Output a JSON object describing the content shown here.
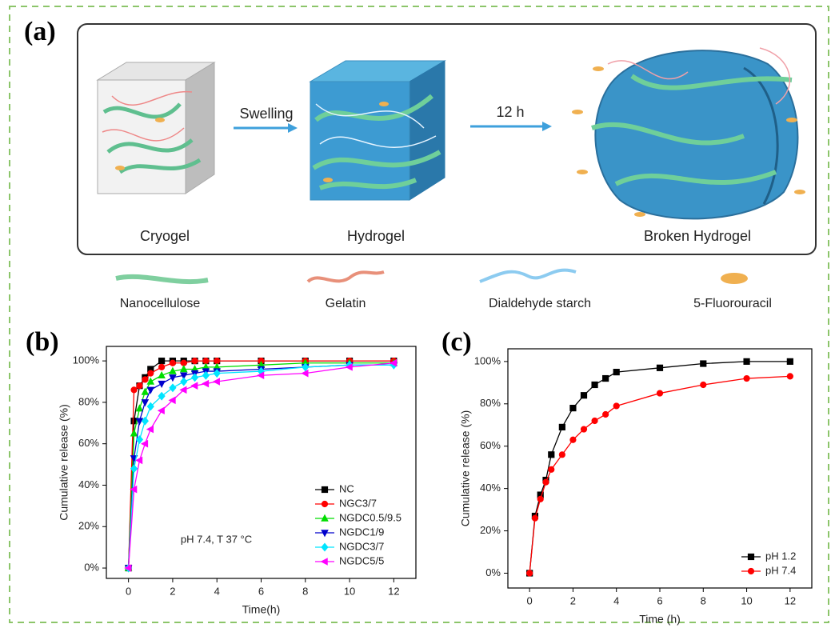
{
  "panels": {
    "a": "(a)",
    "b": "(b)",
    "c": "(c)"
  },
  "diagram": {
    "arrows": [
      "Swelling",
      "12 h"
    ],
    "stages": [
      "Cryogel",
      "Hydrogel",
      "Broken Hydrogel"
    ],
    "legend": [
      "Nanocellulose",
      "Gelatin",
      "Dialdehyde starch",
      "5-Fluorouracil"
    ]
  },
  "chart_data": [
    {
      "type": "line",
      "x_label": "Time(h)",
      "y_label": "Cumulative release (%)",
      "annotation": "pH 7.4, T 37 °C",
      "x": [
        0,
        0.25,
        0.5,
        0.75,
        1,
        1.5,
        2,
        2.5,
        3,
        3.5,
        4,
        6,
        8,
        10,
        12
      ],
      "series": [
        {
          "name": "NC",
          "color": "#000000",
          "marker": "square",
          "values": [
            0,
            71,
            88,
            92,
            96,
            100,
            100,
            100,
            100,
            100,
            100,
            100,
            100,
            100,
            100
          ]
        },
        {
          "name": "NGC3/7",
          "color": "#ff0000",
          "marker": "circle",
          "values": [
            0,
            86,
            88,
            91,
            94,
            97,
            99,
            99,
            100,
            100,
            100,
            100,
            100,
            100,
            100
          ]
        },
        {
          "name": "NGDC0.5/9.5",
          "color": "#00dd00",
          "marker": "triangle-up",
          "values": [
            0,
            65,
            77,
            85,
            90,
            93,
            95,
            96,
            96,
            97,
            97,
            98,
            99,
            99,
            99
          ]
        },
        {
          "name": "NGDC1/9",
          "color": "#0000cc",
          "marker": "triangle-down",
          "values": [
            0,
            53,
            71,
            80,
            86,
            89,
            92,
            93,
            94,
            95,
            95,
            96,
            97,
            98,
            98
          ]
        },
        {
          "name": "NGDC3/7",
          "color": "#00e5ff",
          "marker": "diamond",
          "values": [
            0,
            48,
            62,
            71,
            78,
            83,
            87,
            90,
            92,
            93,
            94,
            95,
            97,
            98,
            98
          ]
        },
        {
          "name": "NGDC5/5",
          "color": "#ff00ff",
          "marker": "triangle-left",
          "values": [
            0,
            38,
            52,
            60,
            67,
            76,
            81,
            86,
            88,
            89,
            90,
            93,
            94,
            97,
            99
          ]
        }
      ],
      "xlim": [
        -1,
        13
      ],
      "ylim": [
        -5,
        107
      ],
      "xticks": [
        0,
        2,
        4,
        6,
        8,
        10,
        12
      ],
      "yticks": [
        {
          "value": 0,
          "label": "0%"
        },
        {
          "value": 20,
          "label": "20%"
        },
        {
          "value": 40,
          "label": "40%"
        },
        {
          "value": 60,
          "label": "60%"
        },
        {
          "value": 80,
          "label": "80%"
        },
        {
          "value": 100,
          "label": "100%"
        }
      ],
      "legend": "lower right",
      "grid": false
    },
    {
      "type": "line",
      "x_label": "Time (h)",
      "y_label": "Cumulative release (%)",
      "x": [
        0,
        0.25,
        0.5,
        0.75,
        1,
        1.5,
        2,
        2.5,
        3,
        3.5,
        4,
        6,
        8,
        10,
        12
      ],
      "series": [
        {
          "name": "pH 1.2",
          "color": "#000000",
          "marker": "square",
          "values": [
            0,
            27,
            37,
            44,
            56,
            69,
            78,
            84,
            89,
            92,
            95,
            97,
            99,
            100,
            100
          ]
        },
        {
          "name": "pH 7.4",
          "color": "#ff0000",
          "marker": "circle",
          "values": [
            0,
            26,
            35,
            43,
            49,
            56,
            63,
            68,
            72,
            75,
            79,
            85,
            89,
            92,
            93
          ]
        }
      ],
      "xlim": [
        -1,
        13
      ],
      "ylim": [
        -7,
        106
      ],
      "xticks": [
        0,
        2,
        4,
        6,
        8,
        10,
        12
      ],
      "yticks": [
        {
          "value": 0,
          "label": "0%"
        },
        {
          "value": 20,
          "label": "20%"
        },
        {
          "value": 40,
          "label": "40%"
        },
        {
          "value": 60,
          "label": "60%"
        },
        {
          "value": 80,
          "label": "80%"
        },
        {
          "value": 100,
          "label": "100%"
        }
      ],
      "legend": "lower right",
      "grid": false
    }
  ]
}
